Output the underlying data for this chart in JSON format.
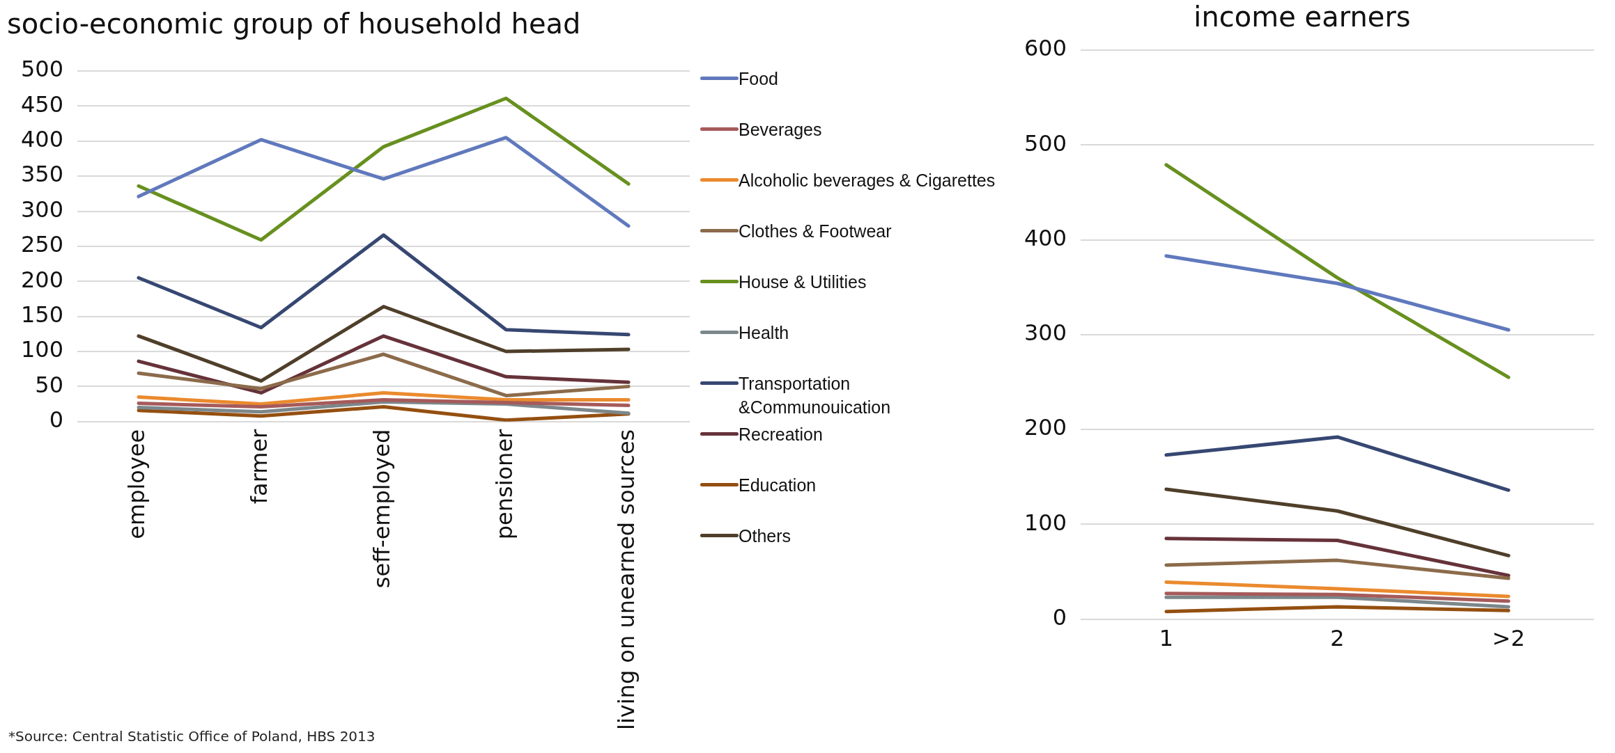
{
  "chart_data": [
    {
      "type": "line",
      "title": "socio-economic group of household head",
      "categories": [
        "employee",
        "farmer",
        "seff-employed",
        "pensioner",
        "living on unearned sources"
      ],
      "series": [
        {
          "name": "Food",
          "color": "#6079bd",
          "values": [
            321,
            402,
            346,
            405,
            279
          ]
        },
        {
          "name": "Beverages",
          "color": "#a65a5a",
          "values": [
            26,
            21,
            31,
            27,
            23
          ]
        },
        {
          "name": "Alcoholic beverages & Cigarettes",
          "color": "#ea8a2e",
          "values": [
            35,
            25,
            41,
            31,
            31
          ]
        },
        {
          "name": "Clothes & Footwear",
          "color": "#8b6b4b",
          "values": [
            69,
            47,
            96,
            37,
            50
          ]
        },
        {
          "name": "House & Utilities",
          "color": "#67901f",
          "values": [
            336,
            259,
            392,
            461,
            339
          ]
        },
        {
          "name": "Health",
          "color": "#7c878b",
          "values": [
            20,
            14,
            28,
            25,
            12
          ]
        },
        {
          "name": "Transportation &Communouication",
          "color": "#364772",
          "values": [
            205,
            134,
            266,
            131,
            124
          ]
        },
        {
          "name": "Recreation",
          "color": "#66323a",
          "values": [
            86,
            41,
            122,
            64,
            56
          ]
        },
        {
          "name": "Education",
          "color": "#944f10",
          "values": [
            16,
            8,
            21,
            2,
            11
          ]
        },
        {
          "name": "Others",
          "color": "#4f3f2a",
          "values": [
            122,
            58,
            164,
            100,
            103
          ]
        }
      ],
      "ylim": [
        0,
        500
      ],
      "yticks": [
        0,
        50,
        100,
        150,
        200,
        250,
        300,
        350,
        400,
        450,
        500
      ],
      "grid": "y",
      "legend": "right",
      "marker": "none",
      "annotations": [
        "*Source: Central Statistic Office of Poland, HBS 2013"
      ]
    },
    {
      "type": "line",
      "title": "income earners",
      "categories": [
        "1",
        "2",
        ">2"
      ],
      "series": [
        {
          "color": "#6079bd",
          "values": [
            383,
            354,
            305
          ]
        },
        {
          "color": "#a65a5a",
          "values": [
            27,
            26,
            19
          ]
        },
        {
          "color": "#ea8a2e",
          "values": [
            39,
            32,
            24
          ]
        },
        {
          "color": "#8b6b4b",
          "values": [
            57,
            62,
            43
          ]
        },
        {
          "color": "#67901f",
          "values": [
            479,
            360,
            255
          ]
        },
        {
          "color": "#7c878b",
          "values": [
            23,
            23,
            13
          ]
        },
        {
          "color": "#364772",
          "values": [
            173,
            192,
            136
          ]
        },
        {
          "color": "#66323a",
          "values": [
            85,
            83,
            46
          ]
        },
        {
          "color": "#944f10",
          "values": [
            8,
            13,
            9
          ]
        },
        {
          "color": "#4f3f2a",
          "values": [
            137,
            114,
            67
          ]
        }
      ],
      "ylim": [
        0,
        600
      ],
      "yticks": [
        0,
        100,
        200,
        300,
        400,
        500,
        600
      ],
      "grid": "y",
      "marker": "none"
    }
  ]
}
